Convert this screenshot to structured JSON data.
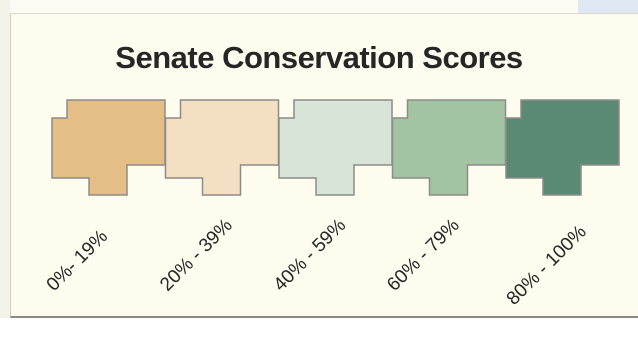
{
  "legend": {
    "title": "Senate Conservation Scores",
    "items": [
      {
        "label": "0%- 19%",
        "range": [
          0,
          19
        ],
        "color": "#e5bd86"
      },
      {
        "label": "20% - 39%",
        "range": [
          20,
          39
        ],
        "color": "#f4dfc3"
      },
      {
        "label": "40% - 59%",
        "range": [
          40,
          59
        ],
        "color": "#d9e4d8"
      },
      {
        "label": "60% - 79%",
        "range": [
          60,
          79
        ],
        "color": "#a3c4a3"
      },
      {
        "label": "80% - 100%",
        "range": [
          80,
          100
        ],
        "color": "#5b8a74"
      }
    ],
    "outline_color": "#8c8c88",
    "text_color": "#262626"
  }
}
